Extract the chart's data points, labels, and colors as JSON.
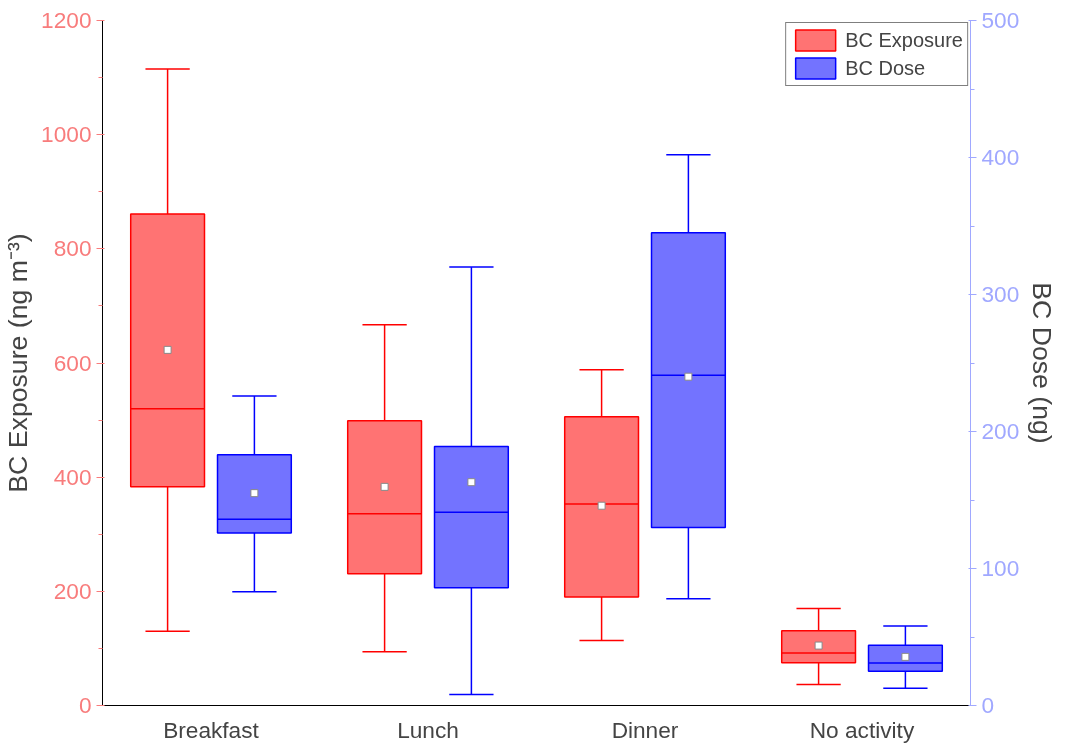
{
  "chart_data": {
    "type": "box",
    "ylabel": "BC Exposure (ng m⁻³)",
    "y2label": "BC Dose (ng)",
    "categories": [
      "Breakfast",
      "Lunch",
      "Dinner",
      "No activity"
    ],
    "series": [
      {
        "name": "BC Exposure",
        "color": "#ff0000",
        "boxes": [
          {
            "low": 130,
            "q1": 383,
            "median": 520,
            "q3": 861,
            "high": 1115,
            "mean": 623
          },
          {
            "low": 94,
            "q1": 231,
            "median": 336,
            "q3": 499,
            "high": 667,
            "mean": 383
          },
          {
            "low": 114,
            "q1": 190,
            "median": 353,
            "q3": 506,
            "high": 588,
            "mean": 350
          },
          {
            "low": 37,
            "q1": 75,
            "median": 92,
            "q3": 131,
            "high": 170,
            "mean": 105
          }
        ]
      },
      {
        "name": "BC Dose",
        "color": "#0000ff",
        "axis": "y2",
        "boxes": [
          {
            "low": 83,
            "q1": 126,
            "median": 136,
            "q3": 183,
            "high": 226,
            "mean": 155
          },
          {
            "low": 8,
            "q1": 86,
            "median": 141,
            "q3": 189,
            "high": 320,
            "mean": 163
          },
          {
            "low": 78,
            "q1": 130,
            "median": 241,
            "q3": 345,
            "high": 402,
            "mean": 240
          },
          {
            "low": 12.6,
            "q1": 25,
            "median": 31,
            "q3": 44,
            "high": 58,
            "mean": 35.5
          }
        ]
      }
    ],
    "ylim": [
      0,
      1200
    ],
    "yticks": [
      0,
      200,
      400,
      600,
      800,
      1000,
      1200
    ],
    "y2lim": [
      0,
      500
    ],
    "y2ticks": [
      0,
      100,
      200,
      300,
      400,
      500
    ],
    "legend": "top right",
    "grid": false
  }
}
